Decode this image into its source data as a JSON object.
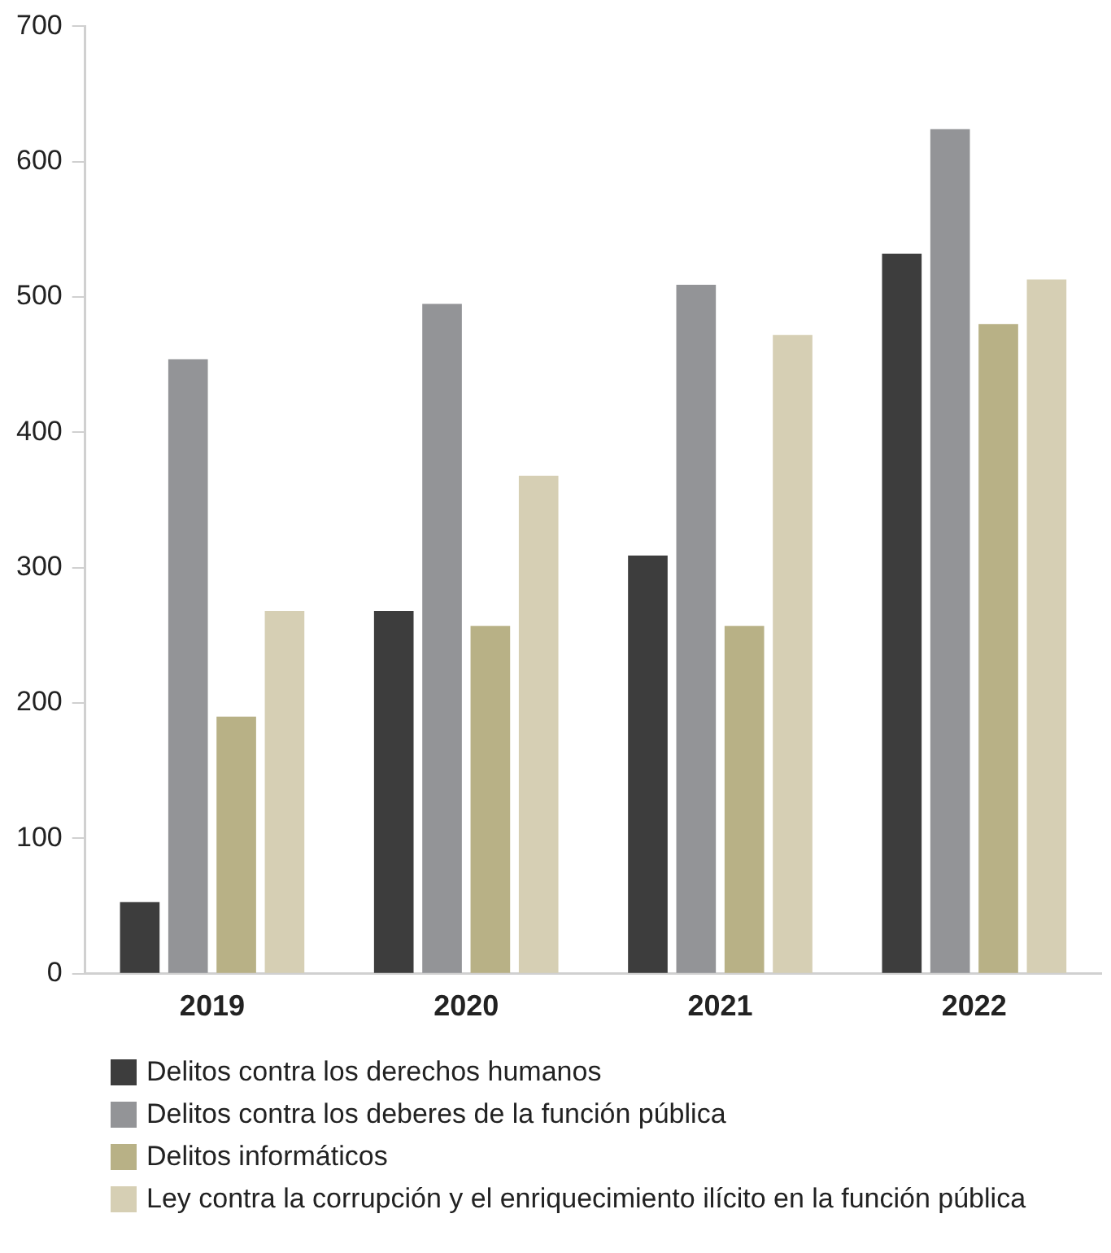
{
  "chart_data": {
    "type": "bar",
    "categories": [
      "2019",
      "2020",
      "2021",
      "2022"
    ],
    "series": [
      {
        "name": "Delitos contra los derechos humanos",
        "color": "#3d3d3d",
        "values": [
          53,
          268,
          309,
          532
        ]
      },
      {
        "name": "Delitos contra los deberes de la función pública",
        "color": "#939497",
        "values": [
          454,
          495,
          509,
          624
        ]
      },
      {
        "name": "Delitos informáticos",
        "color": "#b8b186",
        "values": [
          190,
          257,
          257,
          480
        ]
      },
      {
        "name": "Ley contra la corrupción y el enriquecimiento ilícito en la función pública",
        "color": "#d6cfb4",
        "values": [
          268,
          368,
          472,
          513
        ]
      }
    ],
    "ylim": [
      0,
      700
    ],
    "yticks": [
      0,
      100,
      200,
      300,
      400,
      500,
      600,
      700
    ],
    "grid": false,
    "legend": "bottom"
  }
}
